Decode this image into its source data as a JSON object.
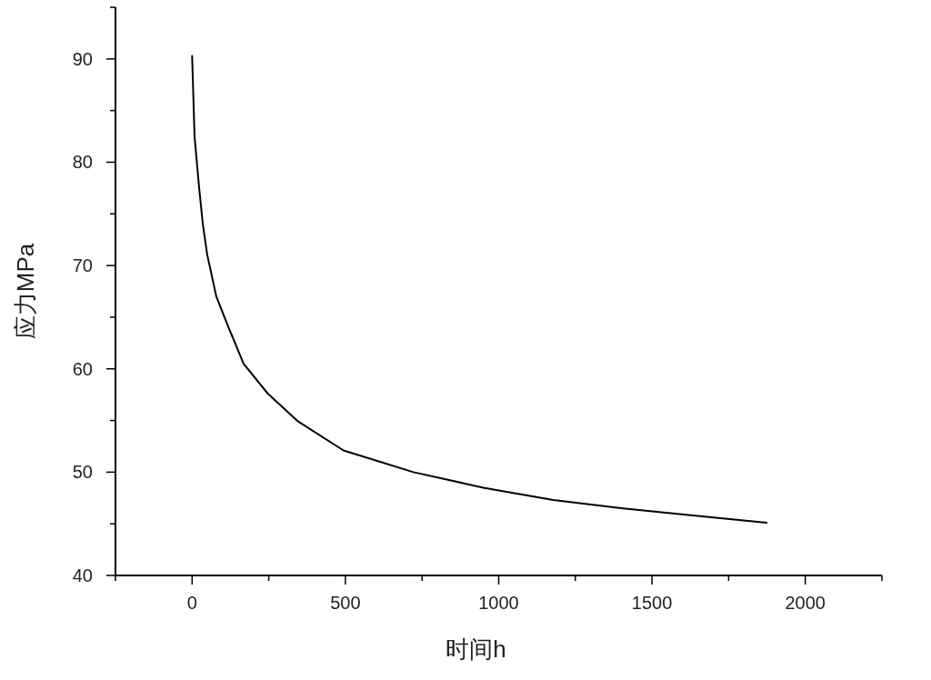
{
  "chart_data": {
    "type": "line",
    "xlabel": "时间h",
    "ylabel": "应力MPa",
    "xlim": [
      -250,
      2250
    ],
    "ylim": [
      40,
      95
    ],
    "xticks": [
      {
        "value": -250,
        "label": null
      },
      0,
      {
        "value": 250,
        "label": null
      },
      500,
      {
        "value": 750,
        "label": null
      },
      1000,
      {
        "value": 1250,
        "label": null
      },
      1500,
      {
        "value": 1750,
        "label": null
      },
      2000,
      {
        "value": 2250,
        "label": null
      }
    ],
    "yticks": [
      40,
      {
        "value": 45,
        "label": null
      },
      50,
      {
        "value": 55,
        "label": null
      },
      60,
      {
        "value": 65,
        "label": null
      },
      70,
      {
        "value": 75,
        "label": null
      },
      80,
      {
        "value": 85,
        "label": null
      },
      90,
      {
        "value": 95,
        "label": null
      }
    ],
    "grid": false,
    "marker": "none",
    "line_style": "solid",
    "x": [
      0,
      8,
      23,
      35,
      49,
      79,
      119,
      168,
      247,
      346,
      494,
      722,
      950,
      1178,
      1406,
      1634,
      1874
    ],
    "series": [
      {
        "color": "#000000",
        "values": [
          90.3,
          82.5,
          77.5,
          74.0,
          71.1,
          67.0,
          64.0,
          60.5,
          57.6,
          54.9,
          52.1,
          50.0,
          48.5,
          47.3,
          46.5,
          45.8,
          45.1
        ]
      }
    ]
  }
}
